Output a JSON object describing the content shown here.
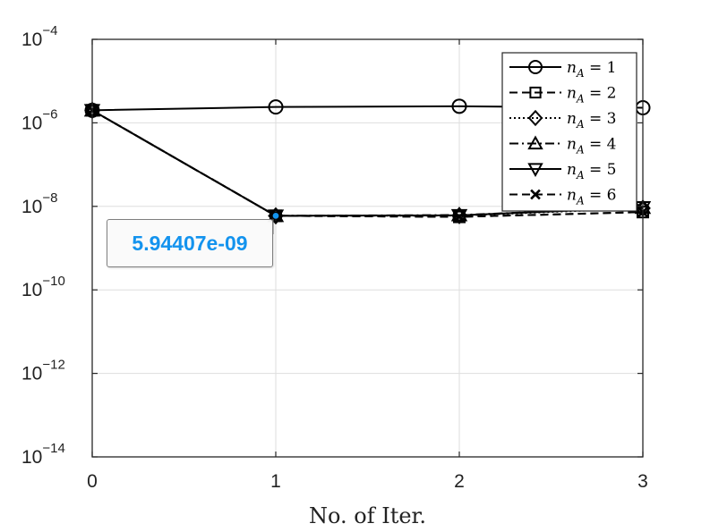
{
  "chart_data": {
    "type": "line",
    "xlabel": "No. of Iter.",
    "ylabel": "",
    "title": "",
    "y_scale": "log",
    "xlim": [
      0,
      3
    ],
    "ylim_exp": [
      -14,
      -4
    ],
    "x_ticks": [
      "0",
      "1",
      "2",
      "3"
    ],
    "y_ticks": [
      {
        "exp": -14,
        "base": "10",
        "sup": "−14"
      },
      {
        "exp": -12,
        "base": "10",
        "sup": "−12"
      },
      {
        "exp": -10,
        "base": "10",
        "sup": "−10"
      },
      {
        "exp": -8,
        "base": "10",
        "sup": "−8"
      },
      {
        "exp": -6,
        "base": "10",
        "sup": "−6"
      },
      {
        "exp": -4,
        "base": "10",
        "sup": "−4"
      }
    ],
    "grid": true,
    "legend_position": "top-right",
    "x": [
      0,
      1,
      2,
      3
    ],
    "series": [
      {
        "name": "n_A = 1",
        "legend_var": "n",
        "legend_sub": "A",
        "legend_eq": " = 1",
        "marker": "circle",
        "line": "solid",
        "values": [
          2e-06,
          2.4e-06,
          2.5e-06,
          2.3e-06
        ]
      },
      {
        "name": "n_A = 2",
        "legend_var": "n",
        "legend_sub": "A",
        "legend_eq": " = 2",
        "marker": "square",
        "line": "dashed",
        "values": [
          2e-06,
          5.94e-09,
          5.6e-09,
          7.3e-09
        ]
      },
      {
        "name": "n_A = 3",
        "legend_var": "n",
        "legend_sub": "A",
        "legend_eq": " = 3",
        "marker": "diamond",
        "line": "dotted",
        "values": [
          2e-06,
          5.94e-09,
          6e-09,
          9e-09
        ]
      },
      {
        "name": "n_A = 4",
        "legend_var": "n",
        "legend_sub": "A",
        "legend_eq": " = 4",
        "marker": "triangle-up",
        "line": "dashdot",
        "values": [
          2e-06,
          5.94e-09,
          6.2e-09,
          9.3e-09
        ]
      },
      {
        "name": "n_A = 5",
        "legend_var": "n",
        "legend_sub": "A",
        "legend_eq": " = 5",
        "marker": "triangle-down",
        "line": "solid",
        "values": [
          2e-06,
          5.94e-09,
          6.1e-09,
          9.4e-09
        ]
      },
      {
        "name": "n_A = 6",
        "legend_var": "n",
        "legend_sub": "A",
        "legend_eq": " = 6",
        "marker": "x",
        "line": "dashed",
        "values": [
          2e-06,
          5.94e-09,
          5.6e-09,
          7.3e-09
        ]
      }
    ],
    "datatip": {
      "x": 1,
      "y": 5.94407e-09,
      "label": "5.94407e-09",
      "color": "#1393ee"
    }
  }
}
